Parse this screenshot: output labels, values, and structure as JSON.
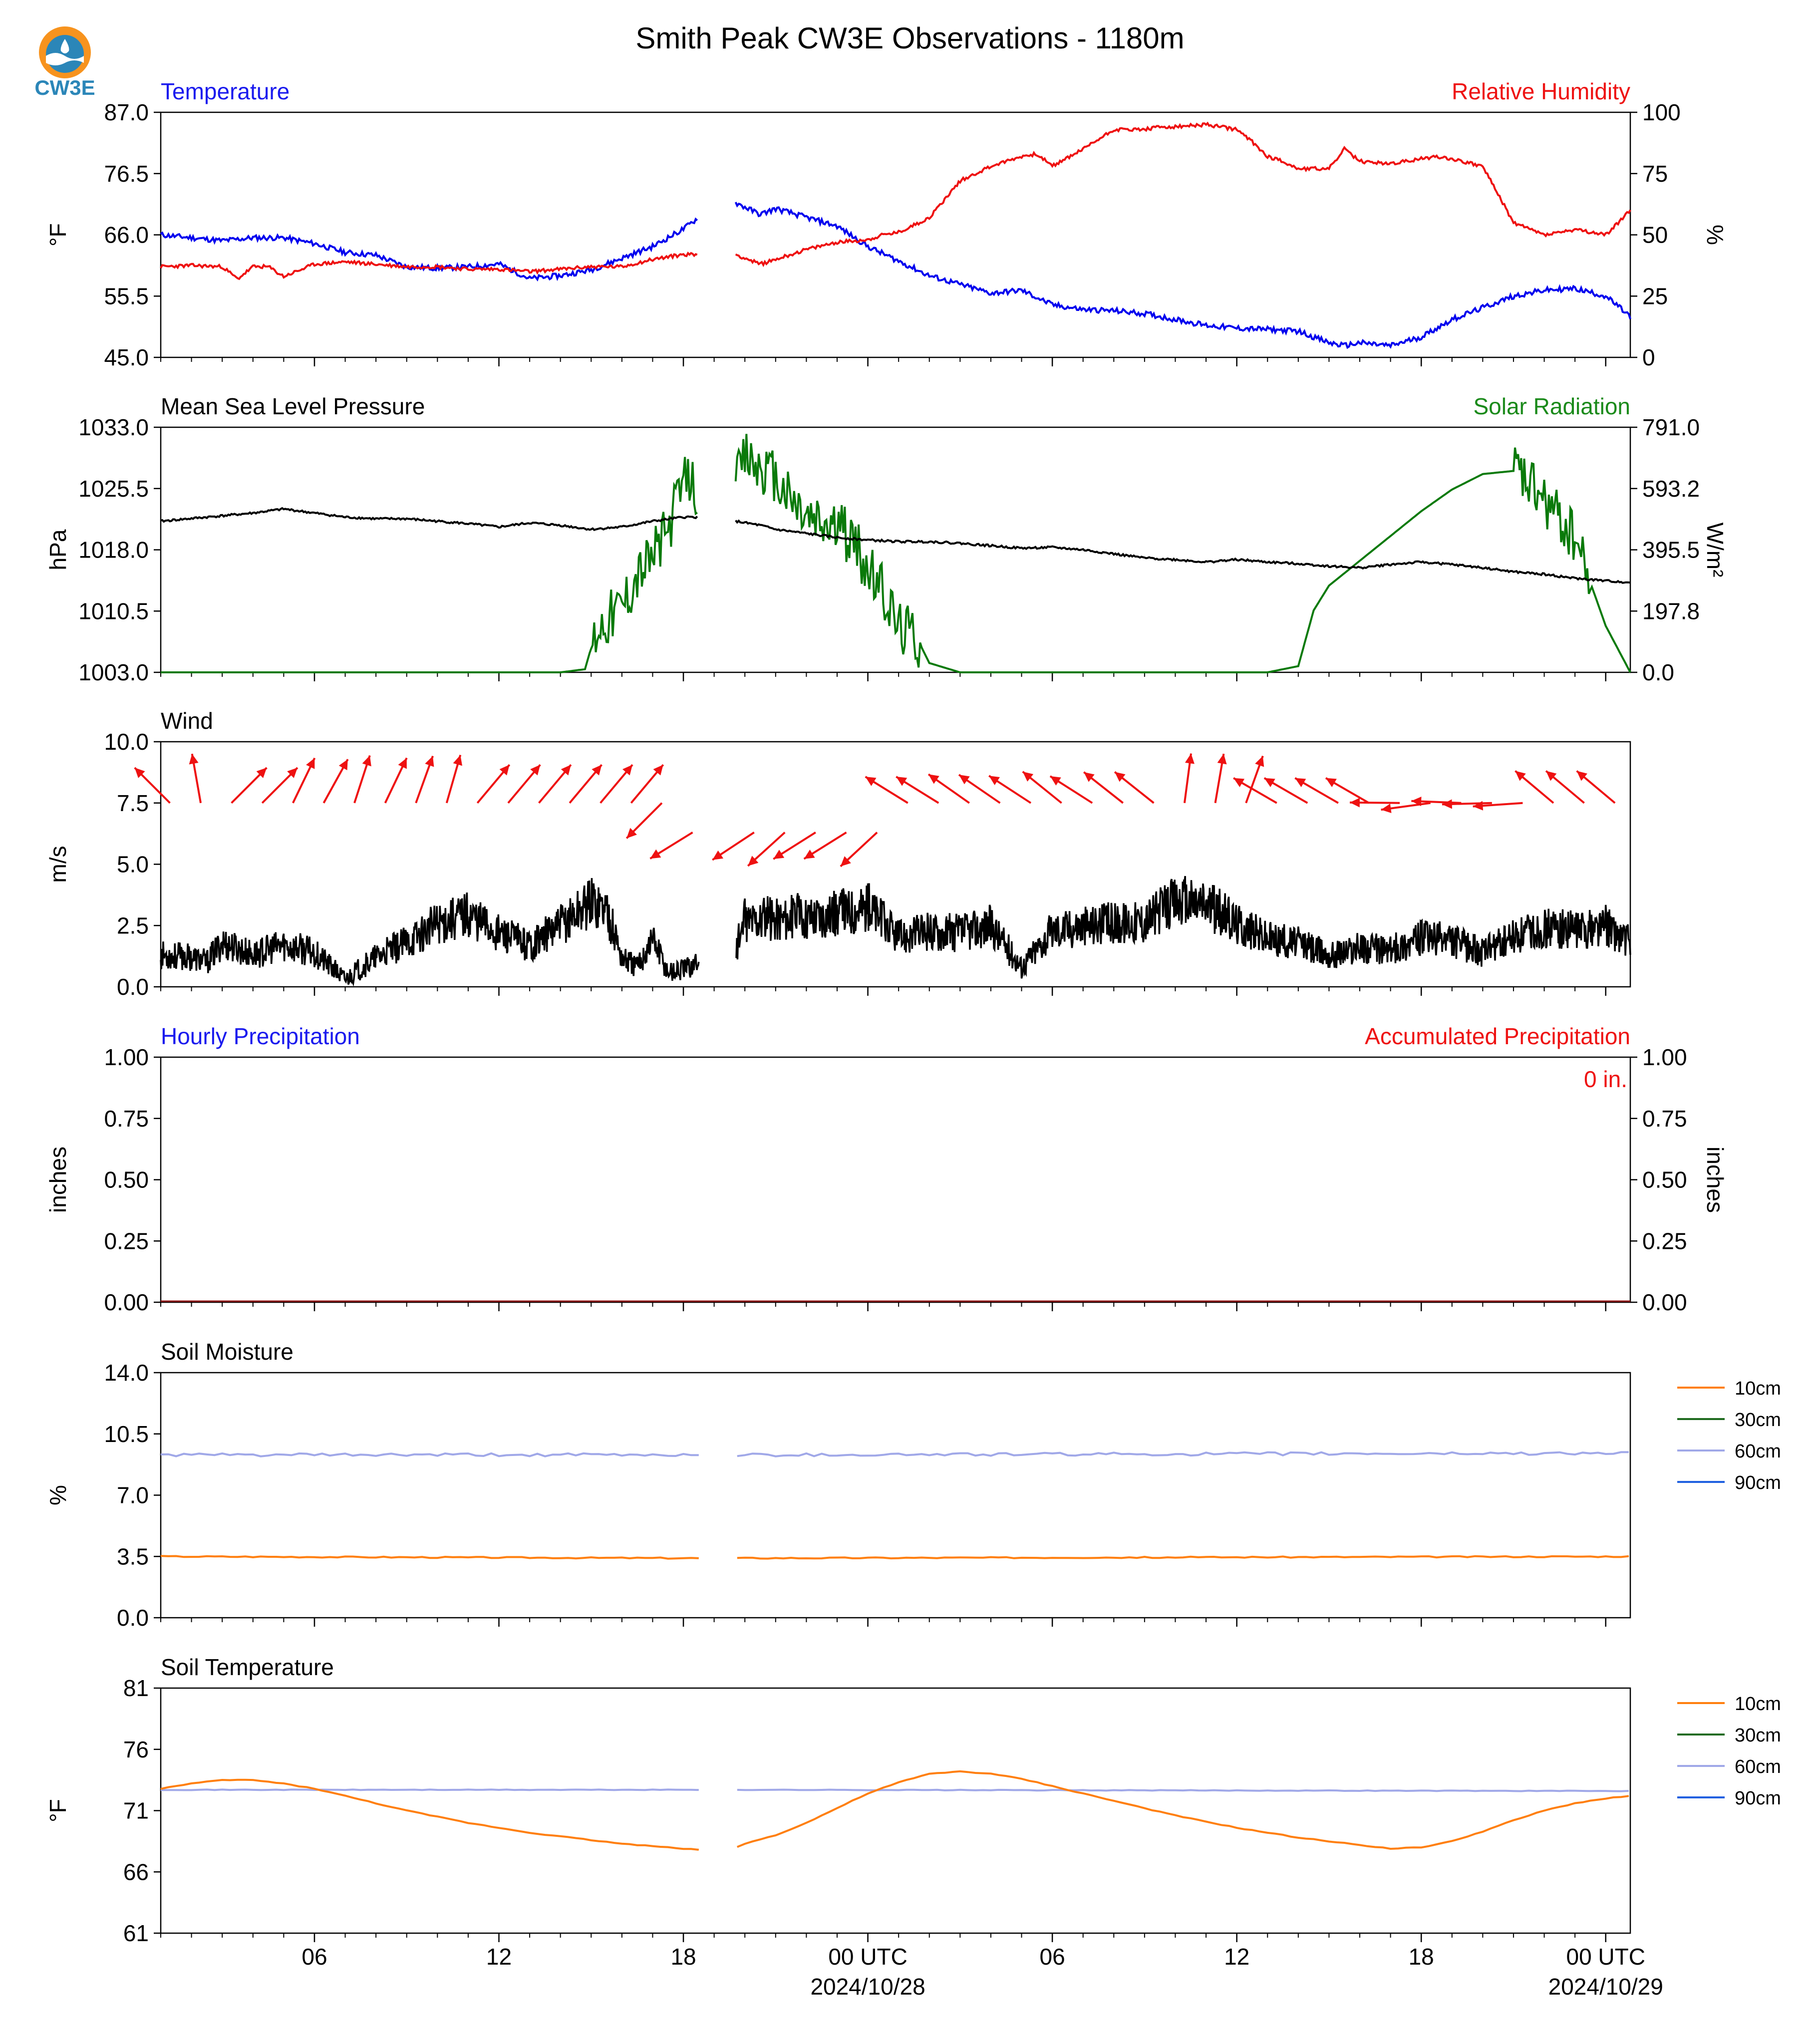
{
  "title": "Smith Peak CW3E Observations - 1180m",
  "logo_text": "CW3E",
  "x_axis": {
    "ticks": [
      "06",
      "12",
      "18",
      "00 UTC",
      "06",
      "12",
      "18",
      "00 UTC"
    ],
    "dates": [
      "2024/10/28",
      "2024/10/29"
    ]
  },
  "colors": {
    "temperature": "#0000ee",
    "humidity": "#ee1111",
    "pressure": "#000000",
    "solar": "#0a7a0a",
    "wind": "#000000",
    "wind_arrows": "#ee1111",
    "soil_10cm": "#ff7f0e",
    "soil_30cm": "#1f6b1f",
    "soil_60cm": "#a0a8e8",
    "soil_90cm": "#2060e0",
    "title_blue": "#1a1aee",
    "title_red": "#ee1111",
    "title_green": "#1a8a1a"
  },
  "legend": [
    "10cm",
    "30cm",
    "60cm",
    "90cm"
  ],
  "panels": {
    "temp": {
      "left_title": "Temperature",
      "right_title": "Relative Humidity",
      "left_unit": "°F",
      "right_unit": "%",
      "left_ticks": [
        "45.0",
        "55.5",
        "66.0",
        "76.5",
        "87.0"
      ],
      "right_ticks": [
        "0",
        "25",
        "50",
        "75",
        "100"
      ]
    },
    "pressure": {
      "left_title": "Mean Sea Level Pressure",
      "right_title": "Solar Radiation",
      "left_unit": "hPa",
      "right_unit": "W/m²",
      "left_ticks": [
        "1003.0",
        "1010.5",
        "1018.0",
        "1025.5",
        "1033.0"
      ],
      "right_ticks": [
        "0.0",
        "197.8",
        "395.5",
        "593.2",
        "791.0"
      ]
    },
    "wind": {
      "left_title": "Wind",
      "left_unit": "m/s",
      "left_ticks": [
        "0.0",
        "2.5",
        "5.0",
        "7.5",
        "10.0"
      ]
    },
    "precip": {
      "left_title": "Hourly Precipitation",
      "right_title": "Accumulated Precipitation",
      "left_unit": "inches",
      "right_unit": "inches",
      "total_label": "0 in.",
      "left_ticks": [
        "0.00",
        "0.25",
        "0.50",
        "0.75",
        "1.00"
      ],
      "right_ticks": [
        "0.00",
        "0.25",
        "0.50",
        "0.75",
        "1.00"
      ]
    },
    "soil_moisture": {
      "left_title": "Soil Moisture",
      "left_unit": "%",
      "left_ticks": [
        "0.0",
        "3.5",
        "7.0",
        "10.5",
        "14.0"
      ]
    },
    "soil_temp": {
      "left_title": "Soil Temperature",
      "left_unit": "°F",
      "left_ticks": [
        "61",
        "66",
        "71",
        "76",
        "81"
      ]
    }
  },
  "chart_data": [
    {
      "type": "line",
      "title": "Temperature / Relative Humidity",
      "x_hours_since": "2024/10/27 01 UTC",
      "ylim": [
        45.0,
        87.0
      ],
      "y2lim": [
        0,
        100
      ],
      "series": [
        {
          "name": "Temperature",
          "axis": "left",
          "x": [
            0,
            2,
            3,
            4,
            5,
            6,
            7,
            8,
            9,
            10,
            11,
            12,
            13,
            14,
            15,
            16,
            17,
            17.5,
            18.7,
            19.5,
            20,
            21,
            22,
            23,
            24,
            25,
            26,
            27,
            28,
            29,
            30,
            31,
            32,
            33,
            34,
            35,
            36,
            37,
            38,
            38.5,
            39,
            40,
            41,
            42,
            43,
            44,
            45,
            46,
            47,
            47.8
          ],
          "y": [
            66,
            65,
            65.5,
            65.5,
            64.5,
            63,
            62.5,
            60.5,
            60.3,
            60.5,
            61,
            58.5,
            59,
            60,
            62,
            64,
            67,
            69,
            71.5,
            69.5,
            70.5,
            69,
            67.5,
            64,
            61.5,
            59,
            57.5,
            56,
            56.5,
            54,
            53.2,
            53,
            52.5,
            51.5,
            50.5,
            50,
            49.8,
            49.5,
            47.5,
            47,
            47.5,
            47,
            48.5,
            51.5,
            53.5,
            55.5,
            56.5,
            56.8,
            55.5,
            52
          ]
        },
        {
          "name": "Relative Humidity",
          "axis": "right",
          "x": [
            0,
            1,
            2,
            2.5,
            3,
            3.5,
            4,
            5,
            6,
            7,
            8,
            9,
            10,
            11,
            12,
            13,
            14,
            15,
            16,
            17,
            17.5,
            18.7,
            19.5,
            20,
            21,
            22,
            23,
            23.5,
            24,
            25,
            26,
            27,
            28,
            28.5,
            29,
            30,
            31,
            32,
            32.5,
            33,
            34,
            35,
            35.5,
            36,
            36.5,
            37,
            38,
            38.5,
            39,
            40,
            41,
            41.5,
            42,
            43,
            44,
            45,
            46,
            47,
            47.8
          ],
          "y": [
            37,
            37.5,
            37,
            32,
            37,
            37,
            33,
            38,
            39,
            38,
            37,
            37,
            36,
            36,
            35,
            36,
            37,
            37,
            40,
            42,
            42,
            42,
            38,
            40,
            44,
            47,
            48,
            50,
            51,
            57,
            72,
            78,
            82,
            83,
            78,
            85,
            93,
            93,
            94,
            94,
            95,
            93,
            88,
            82,
            80,
            77,
            77,
            85,
            80,
            79,
            81,
            82,
            81,
            78,
            55,
            50,
            52,
            50,
            60
          ]
        }
      ]
    },
    {
      "type": "line",
      "title": "Mean Sea Level Pressure / Solar Radiation",
      "x_hours_since": "2024/10/27 01 UTC",
      "ylim": [
        1003.0,
        1033.0
      ],
      "y2lim": [
        0.0,
        791.0
      ],
      "series": [
        {
          "name": "Mean Sea Level Pressure",
          "axis": "left",
          "x": [
            0,
            3,
            4,
            5,
            6,
            7,
            8,
            9,
            10,
            11,
            12,
            13,
            14,
            15,
            16,
            17,
            17.5,
            18.7,
            19.5,
            20,
            21,
            22,
            23,
            24,
            25,
            26,
            27,
            28,
            29,
            30,
            31,
            32,
            33,
            34,
            35,
            36,
            37,
            38,
            39,
            40,
            41,
            42,
            43,
            44,
            45,
            46,
            47,
            47.8
          ],
          "y": [
            1021.5,
            1022.5,
            1023,
            1022.5,
            1022,
            1021.8,
            1021.8,
            1021.5,
            1021.2,
            1020.8,
            1021.3,
            1021.0,
            1020.5,
            1020.8,
            1021.5,
            1022,
            1022,
            1021.5,
            1021,
            1020.5,
            1020,
            1019.5,
            1019.2,
            1019,
            1019,
            1018.8,
            1018.5,
            1018.2,
            1018.3,
            1018,
            1017.5,
            1017,
            1016.8,
            1016.5,
            1016.8,
            1016.5,
            1016.3,
            1016,
            1015.8,
            1016.2,
            1016.5,
            1016.2,
            1015.8,
            1015.3,
            1015,
            1014.5,
            1014.2,
            1014
          ]
        },
        {
          "name": "Solar Radiation",
          "axis": "right",
          "x": [
            0,
            13,
            13.8,
            14.2,
            15,
            15.5,
            16,
            16.5,
            17,
            17.2,
            17.5,
            18.7,
            19,
            19.5,
            20,
            20.5,
            21,
            21.5,
            22,
            22.5,
            23,
            23.5,
            24,
            24.5,
            25,
            26,
            34,
            36,
            37,
            37.5,
            38,
            39,
            40,
            41,
            42,
            43,
            44,
            45,
            46,
            47,
            47.8
          ],
          "y": [
            0,
            0,
            10,
            150,
            220,
            320,
            380,
            460,
            610,
            630,
            580,
            600,
            700,
            660,
            620,
            560,
            500,
            480,
            470,
            430,
            330,
            260,
            150,
            130,
            30,
            0,
            0,
            0,
            20,
            200,
            280,
            360,
            440,
            520,
            590,
            640,
            650,
            550,
            430,
            150,
            0
          ]
        }
      ]
    },
    {
      "type": "line",
      "title": "Wind",
      "x_hours_since": "2024/10/27 01 UTC",
      "ylim": [
        0.0,
        10.0
      ],
      "series": [
        {
          "name": "Wind speed",
          "x": [
            0,
            1,
            1.5,
            2,
            3,
            4,
            5,
            6,
            7,
            8,
            9,
            10,
            11,
            12,
            13,
            14,
            14.5,
            15,
            15.5,
            16,
            16.5,
            17,
            17.5,
            18.7,
            19,
            20,
            21,
            22,
            23,
            24,
            25,
            26,
            27,
            28,
            29,
            30,
            31,
            32,
            33,
            34,
            35,
            36,
            37,
            38,
            39,
            40,
            41,
            42,
            43,
            44,
            45,
            46,
            47,
            47.8
          ],
          "y": [
            1.3,
            1.2,
            1.0,
            1.8,
            1.3,
            1.7,
            1.4,
            0.3,
            1.2,
            1.8,
            2.6,
            3.0,
            2.2,
            1.7,
            2.5,
            3.5,
            3.2,
            1.2,
            0.8,
            2.0,
            0.6,
            0.7,
            1.0,
            1.5,
            2.7,
            2.8,
            2.9,
            3.0,
            3.3,
            2.0,
            2.3,
            2.2,
            2.5,
            0.8,
            2.3,
            2.5,
            2.6,
            2.7,
            3.5,
            3.4,
            2.6,
            2.0,
            1.8,
            1.3,
            1.6,
            1.5,
            2.0,
            1.9,
            1.4,
            2.0,
            2.4,
            2.3,
            2.5,
            1.8
          ]
        }
      ]
    },
    {
      "type": "line",
      "title": "Hourly / Accumulated Precipitation",
      "ylim": [
        0.0,
        1.0
      ],
      "y2lim": [
        0.0,
        1.0
      ],
      "series": [
        {
          "name": "Hourly Precipitation",
          "x": [
            0,
            47.8
          ],
          "y": [
            0,
            0
          ]
        },
        {
          "name": "Accumulated Precipitation",
          "x": [
            0,
            47.8
          ],
          "y": [
            0,
            0
          ]
        }
      ]
    },
    {
      "type": "line",
      "title": "Soil Moisture",
      "ylim": [
        0.0,
        14.0
      ],
      "series": [
        {
          "name": "10cm",
          "x": [
            0,
            17.5,
            18.7,
            47.8
          ],
          "y": [
            3.5,
            3.4,
            3.4,
            3.5
          ]
        },
        {
          "name": "60cm",
          "x": [
            0,
            17.5,
            18.7,
            47.8
          ],
          "y": [
            9.3,
            9.3,
            9.3,
            9.4
          ]
        }
      ]
    },
    {
      "type": "line",
      "title": "Soil Temperature",
      "ylim": [
        61,
        81
      ],
      "series": [
        {
          "name": "10cm",
          "x": [
            0,
            1,
            2,
            3,
            4,
            5,
            6,
            7,
            8,
            9,
            10,
            11,
            12,
            13,
            14,
            15,
            16,
            17,
            17.5,
            18.7,
            19,
            20,
            21,
            22,
            23,
            24,
            25,
            26,
            27,
            28,
            29,
            30,
            31,
            32,
            33,
            34,
            35,
            36,
            37,
            38,
            39,
            40,
            41,
            42,
            43,
            44,
            45,
            46,
            47,
            47.8
          ],
          "y": [
            72.8,
            73.2,
            73.5,
            73.5,
            73.2,
            72.8,
            72.2,
            71.6,
            71.0,
            70.5,
            70.0,
            69.6,
            69.2,
            68.9,
            68.6,
            68.3,
            68.1,
            67.9,
            67.8,
            68.0,
            68.3,
            69.0,
            70.0,
            71.2,
            72.4,
            73.3,
            74.0,
            74.2,
            74.0,
            73.6,
            73.0,
            72.4,
            71.8,
            71.2,
            70.6,
            70.1,
            69.6,
            69.2,
            68.8,
            68.5,
            68.2,
            67.9,
            68.0,
            68.5,
            69.3,
            70.2,
            71.0,
            71.6,
            72.0,
            72.2
          ]
        },
        {
          "name": "60cm",
          "x": [
            0,
            17.5,
            18.7,
            47.8
          ],
          "y": [
            72.7,
            72.7,
            72.7,
            72.6
          ]
        }
      ]
    }
  ]
}
